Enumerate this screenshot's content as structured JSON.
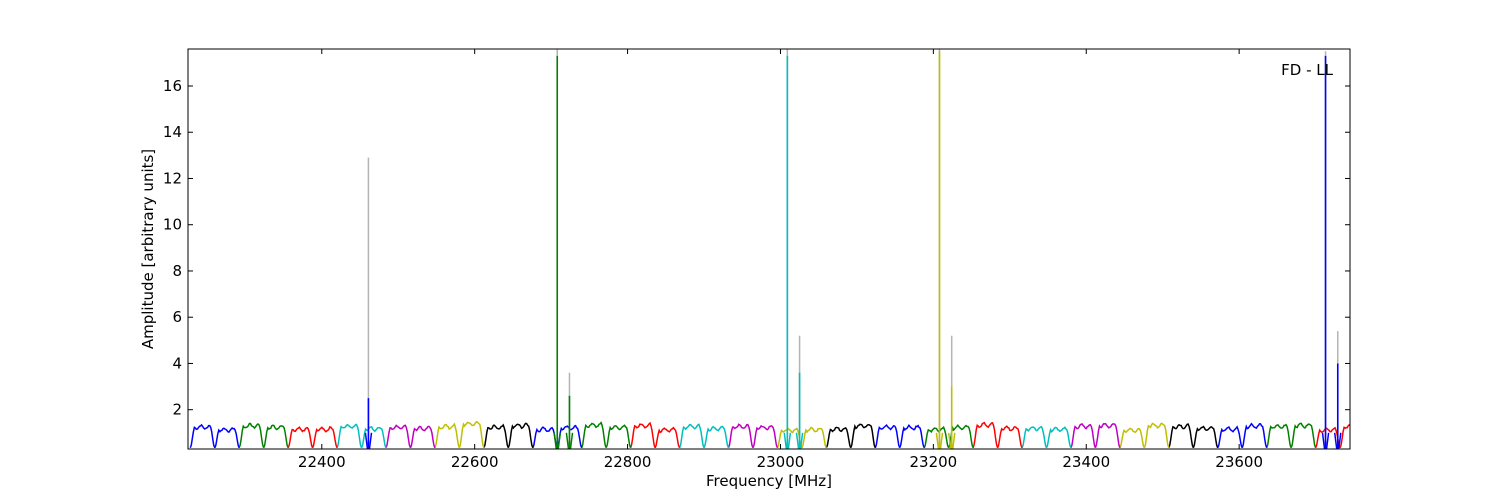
{
  "chart_data": {
    "type": "line",
    "title": "",
    "xlabel": "Frequency [MHz]",
    "ylabel": "Amplitude [arbitrary units]",
    "annotation": "FD - LL",
    "xlim": [
      22225,
      23745
    ],
    "ylim": [
      0.3,
      17.6
    ],
    "xticks": [
      22400,
      22600,
      22800,
      23000,
      23200,
      23400,
      23600
    ],
    "yticks": [
      2,
      4,
      6,
      8,
      10,
      12,
      14,
      16
    ],
    "grid": false,
    "legend": "none",
    "band": {
      "shape": "flat-topped bandpass, edges near 0.35, top about 1.1 to 1.4",
      "width_mhz": 32,
      "colors_cycle": [
        "#0000ff",
        "#008000",
        "#ff0000",
        "#00bfbf",
        "#bf00bf",
        "#bfbf00",
        "#000000"
      ]
    },
    "band_rows": [
      {
        "name": "row-1",
        "start": 22228,
        "spacing": 64
      },
      {
        "name": "row-2",
        "start": 22260,
        "spacing": 64
      }
    ],
    "spikes": [
      {
        "x": 22461,
        "gray_peak": 12.9,
        "color_peak": 2.5,
        "color": "#0000ff"
      },
      {
        "x": 22708,
        "gray_peak": 17.6,
        "color_peak": 17.3,
        "color": "#008000"
      },
      {
        "x": 22724,
        "gray_peak": 3.6,
        "color_peak": 2.6,
        "color": "#008000"
      },
      {
        "x": 23009,
        "gray_peak": 17.6,
        "color_peak": 17.3,
        "color": "#00bfbf"
      },
      {
        "x": 23025,
        "gray_peak": 5.2,
        "color_peak": 3.6,
        "color": "#00bfbf"
      },
      {
        "x": 23208,
        "gray_peak": 17.6,
        "color_peak": 17.5,
        "color": "#bfbf00"
      },
      {
        "x": 23224,
        "gray_peak": 5.2,
        "color_peak": 3.0,
        "color": "#bfbf00"
      },
      {
        "x": 23713,
        "gray_peak": 17.5,
        "color_peak": 17.3,
        "color": "#0000ff"
      },
      {
        "x": 23729,
        "gray_peak": 5.4,
        "color_peak": 4.0,
        "color": "#0000ff"
      }
    ]
  }
}
